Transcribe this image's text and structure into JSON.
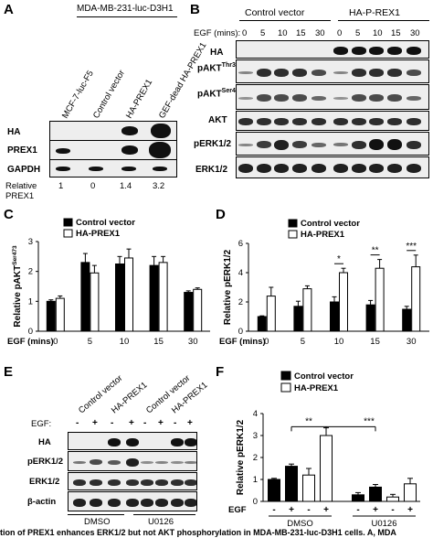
{
  "panelA": {
    "letter": "A",
    "cellline_header": "MDA-MB-231-luc-D3H1",
    "lanes": [
      "MCF-7-luc-F5",
      "Control vector",
      "HA-PREX1",
      "GEF-dead HA-PREX1"
    ],
    "rows": [
      "HA",
      "PREX1",
      "GAPDH"
    ],
    "relative_label": "Relative PREX1",
    "relative_values": [
      "1",
      "0",
      "1.4",
      "3.2"
    ]
  },
  "panelB": {
    "letter": "B",
    "group1": "Control vector",
    "group2": "HA-P-REX1",
    "egf_label": "EGF (mins):",
    "times": [
      "0",
      "5",
      "10",
      "15",
      "30",
      "0",
      "5",
      "10",
      "15",
      "30"
    ],
    "rows": [
      {
        "main": "HA",
        "sup": ""
      },
      {
        "main": "pAKT",
        "sup": "Thr308"
      },
      {
        "main": "pAKT",
        "sup": "Ser473"
      },
      {
        "main": "AKT",
        "sup": ""
      },
      {
        "main": "pERK1/2",
        "sup": ""
      },
      {
        "main": "ERK1/2",
        "sup": ""
      }
    ]
  },
  "panelC": {
    "letter": "C",
    "chart_data": {
      "type": "bar",
      "categories": [
        "0",
        "5",
        "10",
        "15",
        "30"
      ],
      "series": [
        {
          "name": "Control vector",
          "values": [
            1.0,
            2.3,
            2.25,
            2.2,
            1.3
          ],
          "errors": [
            0.05,
            0.3,
            0.25,
            0.3,
            0.05
          ],
          "color": "#000000"
        },
        {
          "name": "HA-PREX1",
          "values": [
            1.1,
            1.95,
            2.45,
            2.3,
            1.4
          ],
          "errors": [
            0.08,
            0.25,
            0.3,
            0.2,
            0.05
          ],
          "color": "#ffffff"
        }
      ],
      "ylabel_main": "Relative pAKT",
      "ylabel_sup": "Ser473",
      "xlabel": "EGF (mins)",
      "ylim": [
        0,
        3
      ],
      "yticks": [
        "0",
        "1",
        "2",
        "3"
      ]
    }
  },
  "panelD": {
    "letter": "D",
    "chart_data": {
      "type": "bar",
      "categories": [
        "0",
        "5",
        "10",
        "15",
        "30"
      ],
      "series": [
        {
          "name": "Control vector",
          "values": [
            1.0,
            1.7,
            2.0,
            1.8,
            1.5
          ],
          "errors": [
            0.05,
            0.35,
            0.35,
            0.3,
            0.2
          ],
          "color": "#000000"
        },
        {
          "name": "HA-PREX1",
          "values": [
            2.4,
            2.9,
            4.0,
            4.3,
            4.4
          ],
          "errors": [
            0.6,
            0.2,
            0.3,
            0.6,
            0.8
          ],
          "color": "#ffffff"
        }
      ],
      "significance": [
        "",
        "",
        "*",
        "**",
        "***"
      ],
      "ylabel": "Relative pERK1/2",
      "xlabel": "EGF (mins)",
      "ylim": [
        0,
        6
      ],
      "yticks": [
        "0",
        "2",
        "4",
        "6"
      ]
    }
  },
  "panelE": {
    "letter": "E",
    "lane_headers": [
      "Control vector",
      "HA-PREX1",
      "Control vector",
      "HA-PREX1"
    ],
    "egf_label": "EGF:",
    "egf_signs": [
      "-",
      "+",
      "-",
      "+",
      "-",
      "+",
      "-",
      "+"
    ],
    "rows": [
      "HA",
      "pERK1/2",
      "ERK1/2",
      "β-actin"
    ],
    "treatments": [
      "DMSO",
      "U0126"
    ]
  },
  "panelF": {
    "letter": "F",
    "chart_data": {
      "type": "bar",
      "categories": [
        "DMSO -",
        "DMSO +",
        "DMSO -",
        "DMSO +",
        "U0126 -",
        "U0126 +",
        "U0126 -",
        "U0126 +"
      ],
      "values": [
        1.0,
        1.6,
        1.2,
        3.0,
        0.3,
        0.65,
        0.2,
        0.8
      ],
      "errors": [
        0.05,
        0.1,
        0.3,
        0.35,
        0.1,
        0.12,
        0.12,
        0.25
      ],
      "fills": [
        "#000000",
        "#000000",
        "#ffffff",
        "#ffffff",
        "#000000",
        "#000000",
        "#ffffff",
        "#ffffff"
      ],
      "egf_signs": [
        "-",
        "+",
        "-",
        "+",
        "-",
        "+",
        "-",
        "+"
      ],
      "legend": [
        "Control vector",
        "HA-PREX1"
      ],
      "significance": [
        "**",
        "***"
      ],
      "ylabel": "Relative pERK1/2",
      "xlabel_prefix": "EGF",
      "groups": [
        "DMSO",
        "U0126"
      ],
      "ylim": [
        0,
        4
      ],
      "yticks": [
        "0",
        "1",
        "2",
        "3",
        "4"
      ]
    }
  },
  "caption": "tion of PREX1 enhances ERK1/2 but not AKT phosphorylation in MDA-MB-231-luc-D3H1 cells. A, MDA"
}
